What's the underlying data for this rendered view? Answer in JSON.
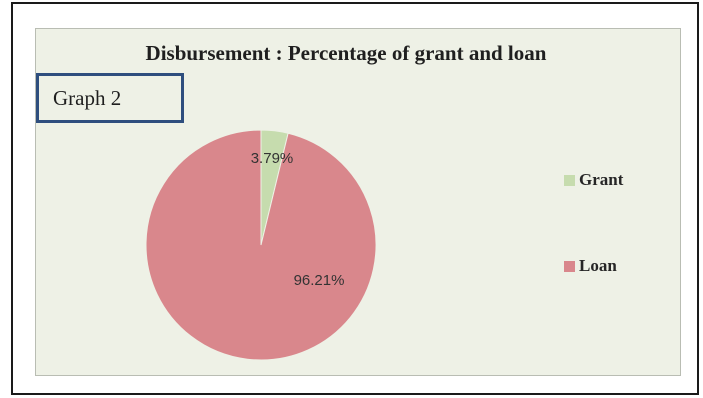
{
  "graph_tag": "Graph 2",
  "chart_data": {
    "type": "pie",
    "title": "Disbursement : Percentage of grant and loan",
    "slices": [
      {
        "label": "Grant",
        "value": 3.79,
        "data_label": "3.79%",
        "color": "#c6dcae"
      },
      {
        "label": "Loan",
        "value": 96.21,
        "data_label": "96.21%",
        "color": "#d9878c"
      }
    ],
    "legend_position": "right",
    "start_angle_deg": 0,
    "direction": "clockwise"
  },
  "colors": {
    "plot_background": "#eef1e6",
    "tag_border": "#2e4e7e"
  }
}
